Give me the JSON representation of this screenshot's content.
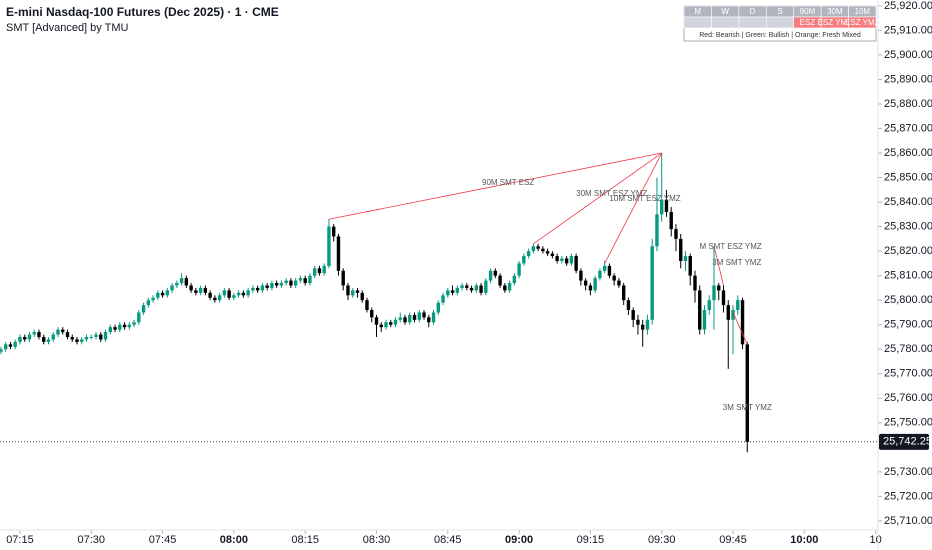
{
  "chart_data": {
    "type": "candlestick",
    "title": "E-mini Nasdaq-100 Futures (Dec 2025) · 1 · CME",
    "subtitle": "SMT [Advanced] by TMU",
    "up_color": "#089981",
    "down_color": "#000000",
    "line_color": "#f23645",
    "xlim": [
      430.8,
      615.5
    ],
    "ylim": [
      25706.3,
      25922.4
    ],
    "xticks": [
      {
        "value": 435,
        "label": "07:15"
      },
      {
        "value": 450,
        "label": "07:30"
      },
      {
        "value": 465,
        "label": "07:45"
      },
      {
        "value": 480,
        "label": "08:00",
        "bold": true
      },
      {
        "value": 495,
        "label": "08:15"
      },
      {
        "value": 510,
        "label": "08:30"
      },
      {
        "value": 525,
        "label": "08:45"
      },
      {
        "value": 540,
        "label": "09:00",
        "bold": true
      },
      {
        "value": 555,
        "label": "09:15"
      },
      {
        "value": 570,
        "label": "09:30"
      },
      {
        "value": 585,
        "label": "09:45"
      },
      {
        "value": 600,
        "label": "10:00",
        "bold": true
      },
      {
        "value": 615,
        "label": "10"
      }
    ],
    "yticks": [
      {
        "value": 25710,
        "label": "25,710.00"
      },
      {
        "value": 25720,
        "label": "25,720.00"
      },
      {
        "value": 25730,
        "label": "25,730.00"
      },
      {
        "value": 25750,
        "label": "25,750.00"
      },
      {
        "value": 25760,
        "label": "25,760.00"
      },
      {
        "value": 25770,
        "label": "25,770.00"
      },
      {
        "value": 25780,
        "label": "25,780.00"
      },
      {
        "value": 25790,
        "label": "25,790.00"
      },
      {
        "value": 25800,
        "label": "25,800.00"
      },
      {
        "value": 25810,
        "label": "25,810.00"
      },
      {
        "value": 25820,
        "label": "25,820.00"
      },
      {
        "value": 25830,
        "label": "25,830.00"
      },
      {
        "value": 25840,
        "label": "25,840.00"
      },
      {
        "value": 25850,
        "label": "25,850.00"
      },
      {
        "value": 25860,
        "label": "25,860.00"
      },
      {
        "value": 25870,
        "label": "25,870.00"
      },
      {
        "value": 25880,
        "label": "25,880.00"
      },
      {
        "value": 25890,
        "label": "25,890.00"
      },
      {
        "value": 25900,
        "label": "25,900.00"
      },
      {
        "value": 25910,
        "label": "25,910.00"
      },
      {
        "value": 25920,
        "label": "25,920.00"
      }
    ],
    "last_price": {
      "value": 25742.25,
      "label": "25,742.25"
    },
    "x": [
      431,
      432,
      433,
      434,
      435,
      436,
      437,
      438,
      439,
      440,
      441,
      442,
      443,
      444,
      445,
      446,
      447,
      448,
      449,
      450,
      451,
      452,
      453,
      454,
      455,
      456,
      457,
      458,
      459,
      460,
      461,
      462,
      463,
      464,
      465,
      466,
      467,
      468,
      469,
      470,
      471,
      472,
      473,
      474,
      475,
      476,
      477,
      478,
      479,
      480,
      481,
      482,
      483,
      484,
      485,
      486,
      487,
      488,
      489,
      490,
      491,
      492,
      493,
      494,
      495,
      496,
      497,
      498,
      499,
      500,
      501,
      502,
      503,
      504,
      505,
      506,
      507,
      508,
      509,
      510,
      511,
      512,
      513,
      514,
      515,
      516,
      517,
      518,
      519,
      520,
      521,
      522,
      523,
      524,
      525,
      526,
      527,
      528,
      529,
      530,
      531,
      532,
      533,
      534,
      535,
      536,
      537,
      538,
      539,
      540,
      541,
      542,
      543,
      544,
      545,
      546,
      547,
      548,
      549,
      550,
      551,
      552,
      553,
      554,
      555,
      556,
      557,
      558,
      559,
      560,
      561,
      562,
      563,
      564,
      565,
      566,
      567,
      568,
      569,
      570,
      571,
      572,
      573,
      574,
      575,
      576,
      577,
      578,
      579,
      580,
      581,
      582,
      583,
      584,
      585,
      586,
      587,
      588
    ],
    "open": [
      25779,
      25780,
      25782,
      25781,
      25783,
      25785,
      25784,
      25786,
      25787,
      25785,
      25783,
      25784,
      25786,
      25788,
      25787,
      25785,
      25784,
      25783,
      25784,
      25785,
      25785,
      25786,
      25784,
      25787,
      25789,
      25788,
      25790,
      25789,
      25790,
      25791,
      25795,
      25798,
      25800,
      25801,
      25803,
      25802,
      25804,
      25806,
      25807,
      25809,
      25806,
      25804,
      25803,
      25805,
      25803,
      25801,
      25800,
      25802,
      25804,
      25801,
      25802,
      25803,
      25802,
      25804,
      25805,
      25804,
      25806,
      25805,
      25807,
      25806,
      25807,
      25808,
      25806,
      25808,
      25809,
      25807,
      25810,
      25813,
      25811,
      25814,
      25830,
      25826,
      25812,
      25806,
      25802,
      25804,
      25803,
      25800,
      25796,
      25793,
      25790,
      25789,
      25791,
      25790,
      25792,
      25793,
      25791,
      25794,
      25792,
      25795,
      25793,
      25791,
      25795,
      25799,
      25802,
      25804,
      25803,
      25805,
      25806,
      25805,
      25804,
      25806,
      25803,
      25808,
      25812,
      25810,
      25806,
      25804,
      25807,
      25810,
      25815,
      25818,
      25820,
      25822,
      25821,
      25820,
      25819,
      25818,
      25816,
      25817,
      25815,
      25818,
      25812,
      25808,
      25806,
      25804,
      25809,
      25812,
      25814,
      25810,
      25808,
      25806,
      25800,
      25796,
      25792,
      25790,
      25788,
      25792,
      25822,
      25835,
      25841,
      25836,
      25829,
      25825,
      25816,
      25818,
      25810,
      25804,
      25788,
      25796,
      25800,
      25806,
      25804,
      25798,
      25792,
      25796,
      25800,
      25782
    ],
    "high": [
      25781,
      25783,
      25783,
      25784,
      25786,
      25786,
      25787,
      25788,
      25788,
      25786,
      25785,
      25787,
      25789,
      25789,
      25788,
      25786,
      25785,
      25785,
      25786,
      25786,
      25787,
      25787,
      25788,
      25790,
      25790,
      25791,
      25791,
      25791,
      25792,
      25796,
      25799,
      25801,
      25802,
      25804,
      25804,
      25805,
      25807,
      25808,
      25811,
      25810,
      25807,
      25805,
      25806,
      25806,
      25804,
      25802,
      25803,
      25805,
      25805,
      25803,
      25804,
      25804,
      25805,
      25806,
      25806,
      25807,
      25807,
      25808,
      25808,
      25808,
      25809,
      25809,
      25809,
      25810,
      25810,
      25811,
      25814,
      25814,
      25815,
      25833,
      25831,
      25827,
      25813,
      25807,
      25805,
      25805,
      25804,
      25801,
      25797,
      25794,
      25791,
      25792,
      25792,
      25793,
      25795,
      25794,
      25795,
      25795,
      25796,
      25796,
      25794,
      25796,
      25800,
      25803,
      25805,
      25806,
      25806,
      25807,
      25807,
      25806,
      25807,
      25807,
      25809,
      25813,
      25813,
      25811,
      25807,
      25808,
      25811,
      25816,
      25819,
      25821,
      25823,
      25823,
      25822,
      25821,
      25820,
      25819,
      25818,
      25818,
      25819,
      25819,
      25813,
      25809,
      25807,
      25810,
      25813,
      25816,
      25815,
      25811,
      25809,
      25807,
      25801,
      25797,
      25794,
      25792,
      25794,
      25825,
      25850,
      25860,
      25845,
      25838,
      25831,
      25827,
      25820,
      25819,
      25812,
      25806,
      25798,
      25802,
      25822,
      25807,
      25806,
      25800,
      25798,
      25802,
      25801,
      25783
    ],
    "low": [
      25778,
      25779,
      25780,
      25780,
      25782,
      25783,
      25783,
      25785,
      25784,
      25782,
      25782,
      25783,
      25785,
      25786,
      25784,
      25783,
      25782,
      25782,
      25783,
      25784,
      25784,
      25783,
      25783,
      25786,
      25787,
      25787,
      25788,
      25788,
      25789,
      25790,
      25794,
      25797,
      25799,
      25800,
      25801,
      25801,
      25803,
      25805,
      25806,
      25805,
      25803,
      25802,
      25802,
      25802,
      25800,
      25799,
      25799,
      25801,
      25800,
      25800,
      25801,
      25801,
      25801,
      25803,
      25803,
      25803,
      25804,
      25804,
      25805,
      25805,
      25806,
      25805,
      25805,
      25807,
      25806,
      25806,
      25809,
      25810,
      25810,
      25813,
      25824,
      25810,
      25804,
      25800,
      25801,
      25801,
      25799,
      25795,
      25791,
      25785,
      25787,
      25788,
      25789,
      25789,
      25791,
      25790,
      25790,
      25791,
      25791,
      25792,
      25789,
      25790,
      25794,
      25798,
      25801,
      25802,
      25802,
      25804,
      25804,
      25803,
      25803,
      25802,
      25802,
      25807,
      25809,
      25805,
      25803,
      25803,
      25806,
      25809,
      25814,
      25817,
      25819,
      25820,
      25819,
      25818,
      25817,
      25815,
      25815,
      25814,
      25814,
      25811,
      25806,
      25804,
      25802,
      25803,
      25808,
      25811,
      25809,
      25806,
      25805,
      25798,
      25794,
      25789,
      25786,
      25781,
      25786,
      25790,
      25820,
      25832,
      25834,
      25826,
      25820,
      25813,
      25812,
      25806,
      25799,
      25786,
      25786,
      25794,
      25788,
      25800,
      25795,
      25772,
      25778,
      25794,
      25780,
      25738
    ],
    "close": [
      25780,
      25782,
      25781,
      25783,
      25785,
      25784,
      25786,
      25787,
      25785,
      25783,
      25784,
      25786,
      25788,
      25787,
      25785,
      25784,
      25783,
      25784,
      25785,
      25785,
      25786,
      25784,
      25787,
      25789,
      25788,
      25790,
      25789,
      25790,
      25791,
      25795,
      25798,
      25800,
      25801,
      25803,
      25802,
      25804,
      25806,
      25807,
      25809,
      25806,
      25804,
      25803,
      25805,
      25803,
      25801,
      25800,
      25802,
      25804,
      25801,
      25802,
      25803,
      25802,
      25804,
      25805,
      25804,
      25806,
      25805,
      25807,
      25806,
      25807,
      25808,
      25806,
      25808,
      25809,
      25807,
      25810,
      25813,
      25811,
      25814,
      25830,
      25826,
      25812,
      25806,
      25802,
      25804,
      25803,
      25800,
      25796,
      25793,
      25790,
      25789,
      25791,
      25790,
      25792,
      25793,
      25791,
      25794,
      25792,
      25795,
      25793,
      25791,
      25795,
      25799,
      25802,
      25804,
      25803,
      25805,
      25806,
      25805,
      25804,
      25806,
      25803,
      25808,
      25812,
      25810,
      25806,
      25804,
      25807,
      25810,
      25815,
      25818,
      25820,
      25822,
      25821,
      25820,
      25819,
      25818,
      25816,
      25817,
      25815,
      25818,
      25812,
      25808,
      25806,
      25804,
      25809,
      25812,
      25814,
      25810,
      25808,
      25806,
      25800,
      25796,
      25792,
      25790,
      25788,
      25792,
      25822,
      25835,
      25841,
      25836,
      25829,
      25825,
      25816,
      25818,
      25810,
      25804,
      25788,
      25796,
      25800,
      25806,
      25804,
      25798,
      25792,
      25796,
      25800,
      25782,
      25742.25
    ],
    "annotations": [
      {
        "text": "90M SMT ESZ",
        "text_at": [
          537.7,
          25847.8
        ],
        "from": [
          500,
          25833
        ],
        "to": [
          570,
          25860
        ]
      },
      {
        "text": "30M SMT ESZ YMZ",
        "text_at": [
          559.5,
          25843.3
        ],
        "from": [
          543,
          25823
        ],
        "to": [
          570,
          25860
        ]
      },
      {
        "text": "10M SMT ESZ YMZ",
        "text_at": [
          566.5,
          25841.3
        ],
        "from": [
          558,
          25815
        ],
        "to": [
          570,
          25860
        ]
      },
      {
        "text": "M SMT ESZ YMZ",
        "text_at": [
          584.5,
          25821.7
        ]
      },
      {
        "text": "3M SMT YMZ",
        "text_at": [
          585.8,
          25815.2
        ],
        "from": [
          581,
          25822
        ],
        "to": [
          583,
          25806
        ]
      },
      {
        "text": "3M SMT YMZ",
        "text_at": [
          588,
          25756
        ],
        "from": [
          585,
          25795
        ],
        "to": [
          588,
          25782
        ]
      }
    ]
  },
  "table": {
    "header": [
      "M",
      "W",
      "D",
      "S",
      "90M",
      "30M",
      "10M"
    ],
    "row": [
      null,
      null,
      null,
      null,
      "ESZ",
      "ESZ YMZ",
      "ESZ YMZ"
    ],
    "legend": "Red: Bearish | Green: Bullish | Orange: Fresh Mixed"
  }
}
